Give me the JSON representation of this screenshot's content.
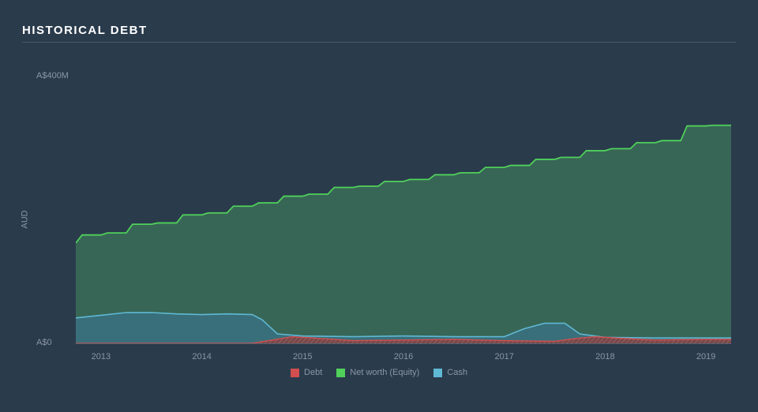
{
  "chart": {
    "type": "area",
    "title": "HISTORICAL DEBT",
    "background_color": "#2a3b4c",
    "title_color": "#ffffff",
    "title_fontsize": 15,
    "title_letterspacing": 1.5,
    "title_underline_color": "#4a5a68",
    "grid_color": "#52606d",
    "label_color": "#8a96a3",
    "label_fontsize": 11,
    "ylabel": "AUD",
    "ylim": [
      0,
      400
    ],
    "ytick_top": "A$400M",
    "ytick_bottom": "A$0",
    "x_years": [
      2013,
      2014,
      2015,
      2016,
      2017,
      2018,
      2019
    ],
    "x_range": [
      2012.75,
      2019.25
    ],
    "series": [
      {
        "name": "Net worth (Equity)",
        "fill_color": "#3b6e58",
        "fill_opacity": 0.85,
        "stroke_color": "#4fd15a",
        "stroke_width": 1.8,
        "x": [
          2012.75,
          2013.0,
          2013.25,
          2013.5,
          2013.75,
          2014.0,
          2014.25,
          2014.5,
          2014.75,
          2015.0,
          2015.25,
          2015.5,
          2015.75,
          2016.0,
          2016.25,
          2016.5,
          2016.75,
          2017.0,
          2017.25,
          2017.5,
          2017.75,
          2018.0,
          2018.25,
          2018.5,
          2018.75,
          2019.0,
          2019.25
        ],
        "y": [
          150,
          162,
          165,
          178,
          180,
          192,
          195,
          205,
          210,
          220,
          223,
          233,
          235,
          242,
          245,
          252,
          255,
          263,
          266,
          275,
          278,
          288,
          291,
          300,
          303,
          325,
          326
        ]
      },
      {
        "name": "Cash",
        "fill_color": "#3a7180",
        "fill_opacity": 0.85,
        "stroke_color": "#5fb8d4",
        "stroke_width": 1.6,
        "x": [
          2012.75,
          2013.0,
          2013.25,
          2013.5,
          2013.75,
          2014.0,
          2014.25,
          2014.5,
          2014.6,
          2014.75,
          2015.0,
          2015.5,
          2016.0,
          2016.5,
          2017.0,
          2017.2,
          2017.4,
          2017.6,
          2017.75,
          2018.0,
          2018.5,
          2019.0,
          2019.25
        ],
        "y": [
          38,
          42,
          46,
          46,
          44,
          43,
          44,
          43,
          35,
          14,
          11,
          10,
          11,
          10,
          10,
          22,
          30,
          30,
          14,
          9,
          8,
          8,
          8
        ]
      },
      {
        "name": "Debt",
        "fill_color": "#8a3e3e",
        "fill_opacity": 0.85,
        "stroke_color": "#d14f4f",
        "stroke_width": 1.4,
        "x": [
          2012.75,
          2014.5,
          2014.7,
          2014.9,
          2015.1,
          2015.5,
          2016.0,
          2016.5,
          2017.0,
          2017.5,
          2017.7,
          2017.9,
          2018.1,
          2018.5,
          2019.0,
          2019.25
        ],
        "y": [
          0,
          0,
          5,
          10,
          8,
          4,
          5,
          6,
          4,
          3,
          7,
          10,
          8,
          5,
          6,
          6
        ]
      }
    ],
    "legend": [
      {
        "label": "Debt",
        "color": "#d14f4f"
      },
      {
        "label": "Net worth (Equity)",
        "color": "#4fd15a"
      },
      {
        "label": "Cash",
        "color": "#5fb8d4"
      }
    ],
    "debt_hatch_color": "#888888"
  }
}
